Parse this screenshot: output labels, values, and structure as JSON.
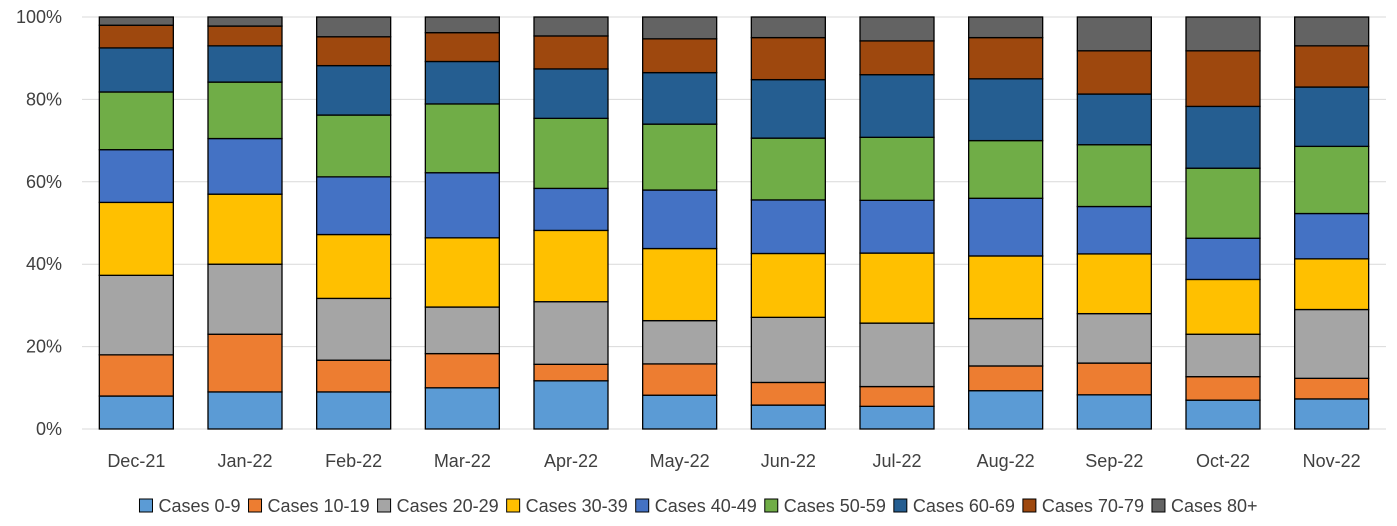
{
  "chart_data": {
    "type": "bar",
    "stacked": true,
    "percent": true,
    "categories": [
      "Dec-21",
      "Jan-22",
      "Feb-22",
      "Mar-22",
      "Apr-22",
      "May-22",
      "Jun-22",
      "Jul-22",
      "Aug-22",
      "Sep-22",
      "Oct-22",
      "Nov-22"
    ],
    "y_ticks": [
      "0%",
      "20%",
      "40%",
      "60%",
      "80%",
      "100%"
    ],
    "ylim": [
      0,
      100
    ],
    "grid": true,
    "legend_position": "bottom",
    "series": [
      {
        "name": "Cases 0-9",
        "color": "#5B9BD5",
        "values": [
          8.0,
          9.0,
          9.0,
          10.0,
          11.7,
          8.2,
          5.8,
          5.5,
          9.3,
          8.3,
          7.0,
          7.3
        ]
      },
      {
        "name": "Cases 10-19",
        "color": "#ED7D31",
        "values": [
          10.0,
          14.0,
          7.7,
          8.3,
          4.0,
          7.6,
          5.5,
          4.8,
          6.0,
          7.7,
          5.7,
          5.0
        ]
      },
      {
        "name": "Cases 20-29",
        "color": "#A5A5A5",
        "values": [
          19.3,
          17.0,
          15.0,
          11.3,
          15.2,
          10.5,
          15.8,
          15.4,
          11.5,
          12.0,
          10.3,
          16.7
        ]
      },
      {
        "name": "Cases 30-39",
        "color": "#FFC000",
        "values": [
          17.7,
          17.0,
          15.5,
          16.8,
          17.3,
          17.5,
          15.5,
          17.0,
          15.2,
          14.5,
          13.3,
          12.3
        ]
      },
      {
        "name": "Cases 40-49",
        "color": "#4472C4",
        "values": [
          12.8,
          13.5,
          14.0,
          15.8,
          10.2,
          14.2,
          13.0,
          12.8,
          14.0,
          11.5,
          10.0,
          11.0
        ]
      },
      {
        "name": "Cases 50-59",
        "color": "#70AD47",
        "values": [
          14.0,
          13.7,
          15.0,
          16.7,
          17.0,
          16.0,
          15.0,
          15.3,
          14.0,
          15.0,
          17.0,
          16.3
        ]
      },
      {
        "name": "Cases 60-69",
        "color": "#255E91",
        "values": [
          10.7,
          8.8,
          12.0,
          10.3,
          12.0,
          12.5,
          14.2,
          15.2,
          15.0,
          12.3,
          15.0,
          14.4
        ]
      },
      {
        "name": "Cases 70-79",
        "color": "#9E480E",
        "values": [
          5.5,
          4.8,
          7.0,
          7.0,
          8.0,
          8.2,
          10.2,
          8.2,
          10.0,
          10.5,
          13.5,
          10.0
        ]
      },
      {
        "name": "Cases 80+",
        "color": "#636363",
        "values": [
          2.0,
          2.2,
          4.8,
          3.8,
          4.6,
          5.3,
          5.0,
          5.8,
          5.0,
          8.2,
          8.2,
          7.0
        ]
      }
    ]
  }
}
